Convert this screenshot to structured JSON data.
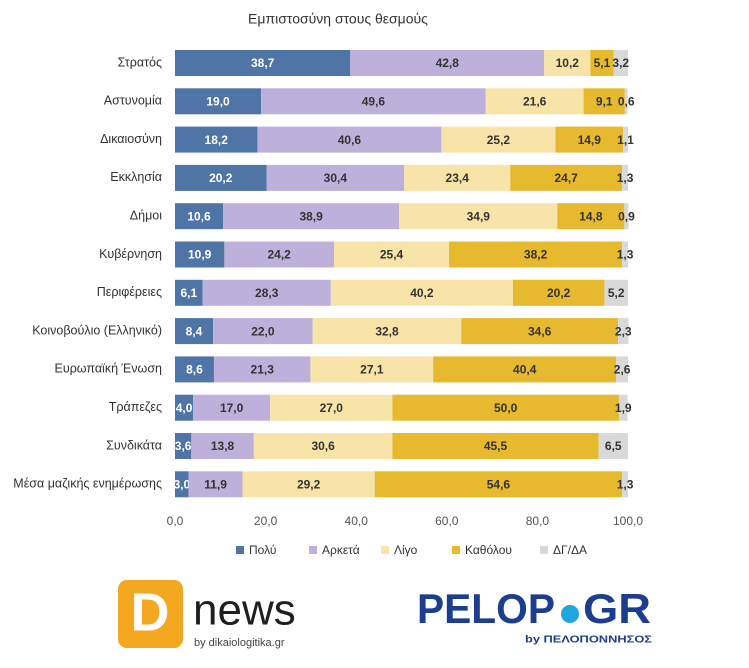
{
  "chart_data": {
    "type": "bar",
    "orientation": "horizontal",
    "stacked": true,
    "title": "Εμπιστοσύνη στους θεσμούς",
    "categories": [
      "Στρατός",
      "Αστυνομία",
      "Δικαιοσύνη",
      "Εκκλησία",
      "Δήμοι",
      "Κυβέρνηση",
      "Περιφέρειες",
      "Κοινοβούλιο (Ελληνικό)",
      "Ευρωπαϊκή Ένωση",
      "Τράπεζες",
      "Συνδικάτα",
      "Μέσα μαζικής ενημέρωσης"
    ],
    "series": [
      {
        "name": "Πολύ",
        "color": "#4f74a6",
        "label_color": "#ffffff",
        "values": [
          38.7,
          19.0,
          18.2,
          20.2,
          10.6,
          10.9,
          6.1,
          8.4,
          8.6,
          4.0,
          3.6,
          3.0
        ],
        "value_labels": [
          "38,7",
          "19,0",
          "18,2",
          "20,2",
          "10,6",
          "10,9",
          "6,1",
          "8,4",
          "8,6",
          "4,0",
          "3,6",
          "3,0"
        ]
      },
      {
        "name": "Αρκετά",
        "color": "#bdb0da",
        "label_color": "#333333",
        "values": [
          42.8,
          49.6,
          40.6,
          30.4,
          38.9,
          24.2,
          28.3,
          22.0,
          21.3,
          17.0,
          13.8,
          11.9
        ],
        "value_labels": [
          "42,8",
          "49,6",
          "40,6",
          "30,4",
          "38,9",
          "24,2",
          "28,3",
          "22,0",
          "21,3",
          "17,0",
          "13,8",
          "11,9"
        ]
      },
      {
        "name": "Λίγο",
        "color": "#f8e4a8",
        "label_color": "#333333",
        "values": [
          10.2,
          21.6,
          25.2,
          23.4,
          34.9,
          25.4,
          40.2,
          32.8,
          27.1,
          27.0,
          30.6,
          29.2
        ],
        "value_labels": [
          "10,2",
          "21,6",
          "25,2",
          "23,4",
          "34,9",
          "25,4",
          "40,2",
          "32,8",
          "27,1",
          "27,0",
          "30,6",
          "29,2"
        ]
      },
      {
        "name": "Καθόλου",
        "color": "#e6b92f",
        "label_color": "#333333",
        "values": [
          5.1,
          9.1,
          14.9,
          24.7,
          14.8,
          38.2,
          20.2,
          34.6,
          40.4,
          50.0,
          45.5,
          54.6
        ],
        "value_labels": [
          "5,1",
          "9,1",
          "14,9",
          "24,7",
          "14,8",
          "38,2",
          "20,2",
          "34,6",
          "40,4",
          "50,0",
          "45,5",
          "54,6"
        ]
      },
      {
        "name": "ΔΓ/ΔΑ",
        "color": "#d9d9d9",
        "label_color": "#333333",
        "values": [
          3.2,
          0.6,
          1.1,
          1.3,
          0.9,
          1.3,
          5.2,
          2.3,
          2.6,
          1.9,
          6.5,
          1.3
        ],
        "value_labels": [
          "3,2",
          "0,6",
          "1,1",
          "1,3",
          "0,9",
          "1,3",
          "5,2",
          "2,3",
          "2,6",
          "1,9",
          "6,5",
          "1,3"
        ]
      }
    ],
    "xlim": [
      0,
      100
    ],
    "xticks": [
      {
        "value": 0,
        "label": "0,0"
      },
      {
        "value": 20,
        "label": "20,0"
      },
      {
        "value": 40,
        "label": "40,0"
      },
      {
        "value": 60,
        "label": "60,0"
      },
      {
        "value": 80,
        "label": "80,0"
      },
      {
        "value": 100,
        "label": "100,0"
      }
    ],
    "grid": false,
    "legend": "bottom"
  },
  "branding": {
    "dnews_icon": "D",
    "dnews": "news",
    "dnews_sub": "by dikaiologitika.gr",
    "pelop_left": "PELOP",
    "pelop_right": "GR",
    "pelop_sub": "by ΠΕΛΟΠΟΝΝΗΣΟΣ"
  }
}
